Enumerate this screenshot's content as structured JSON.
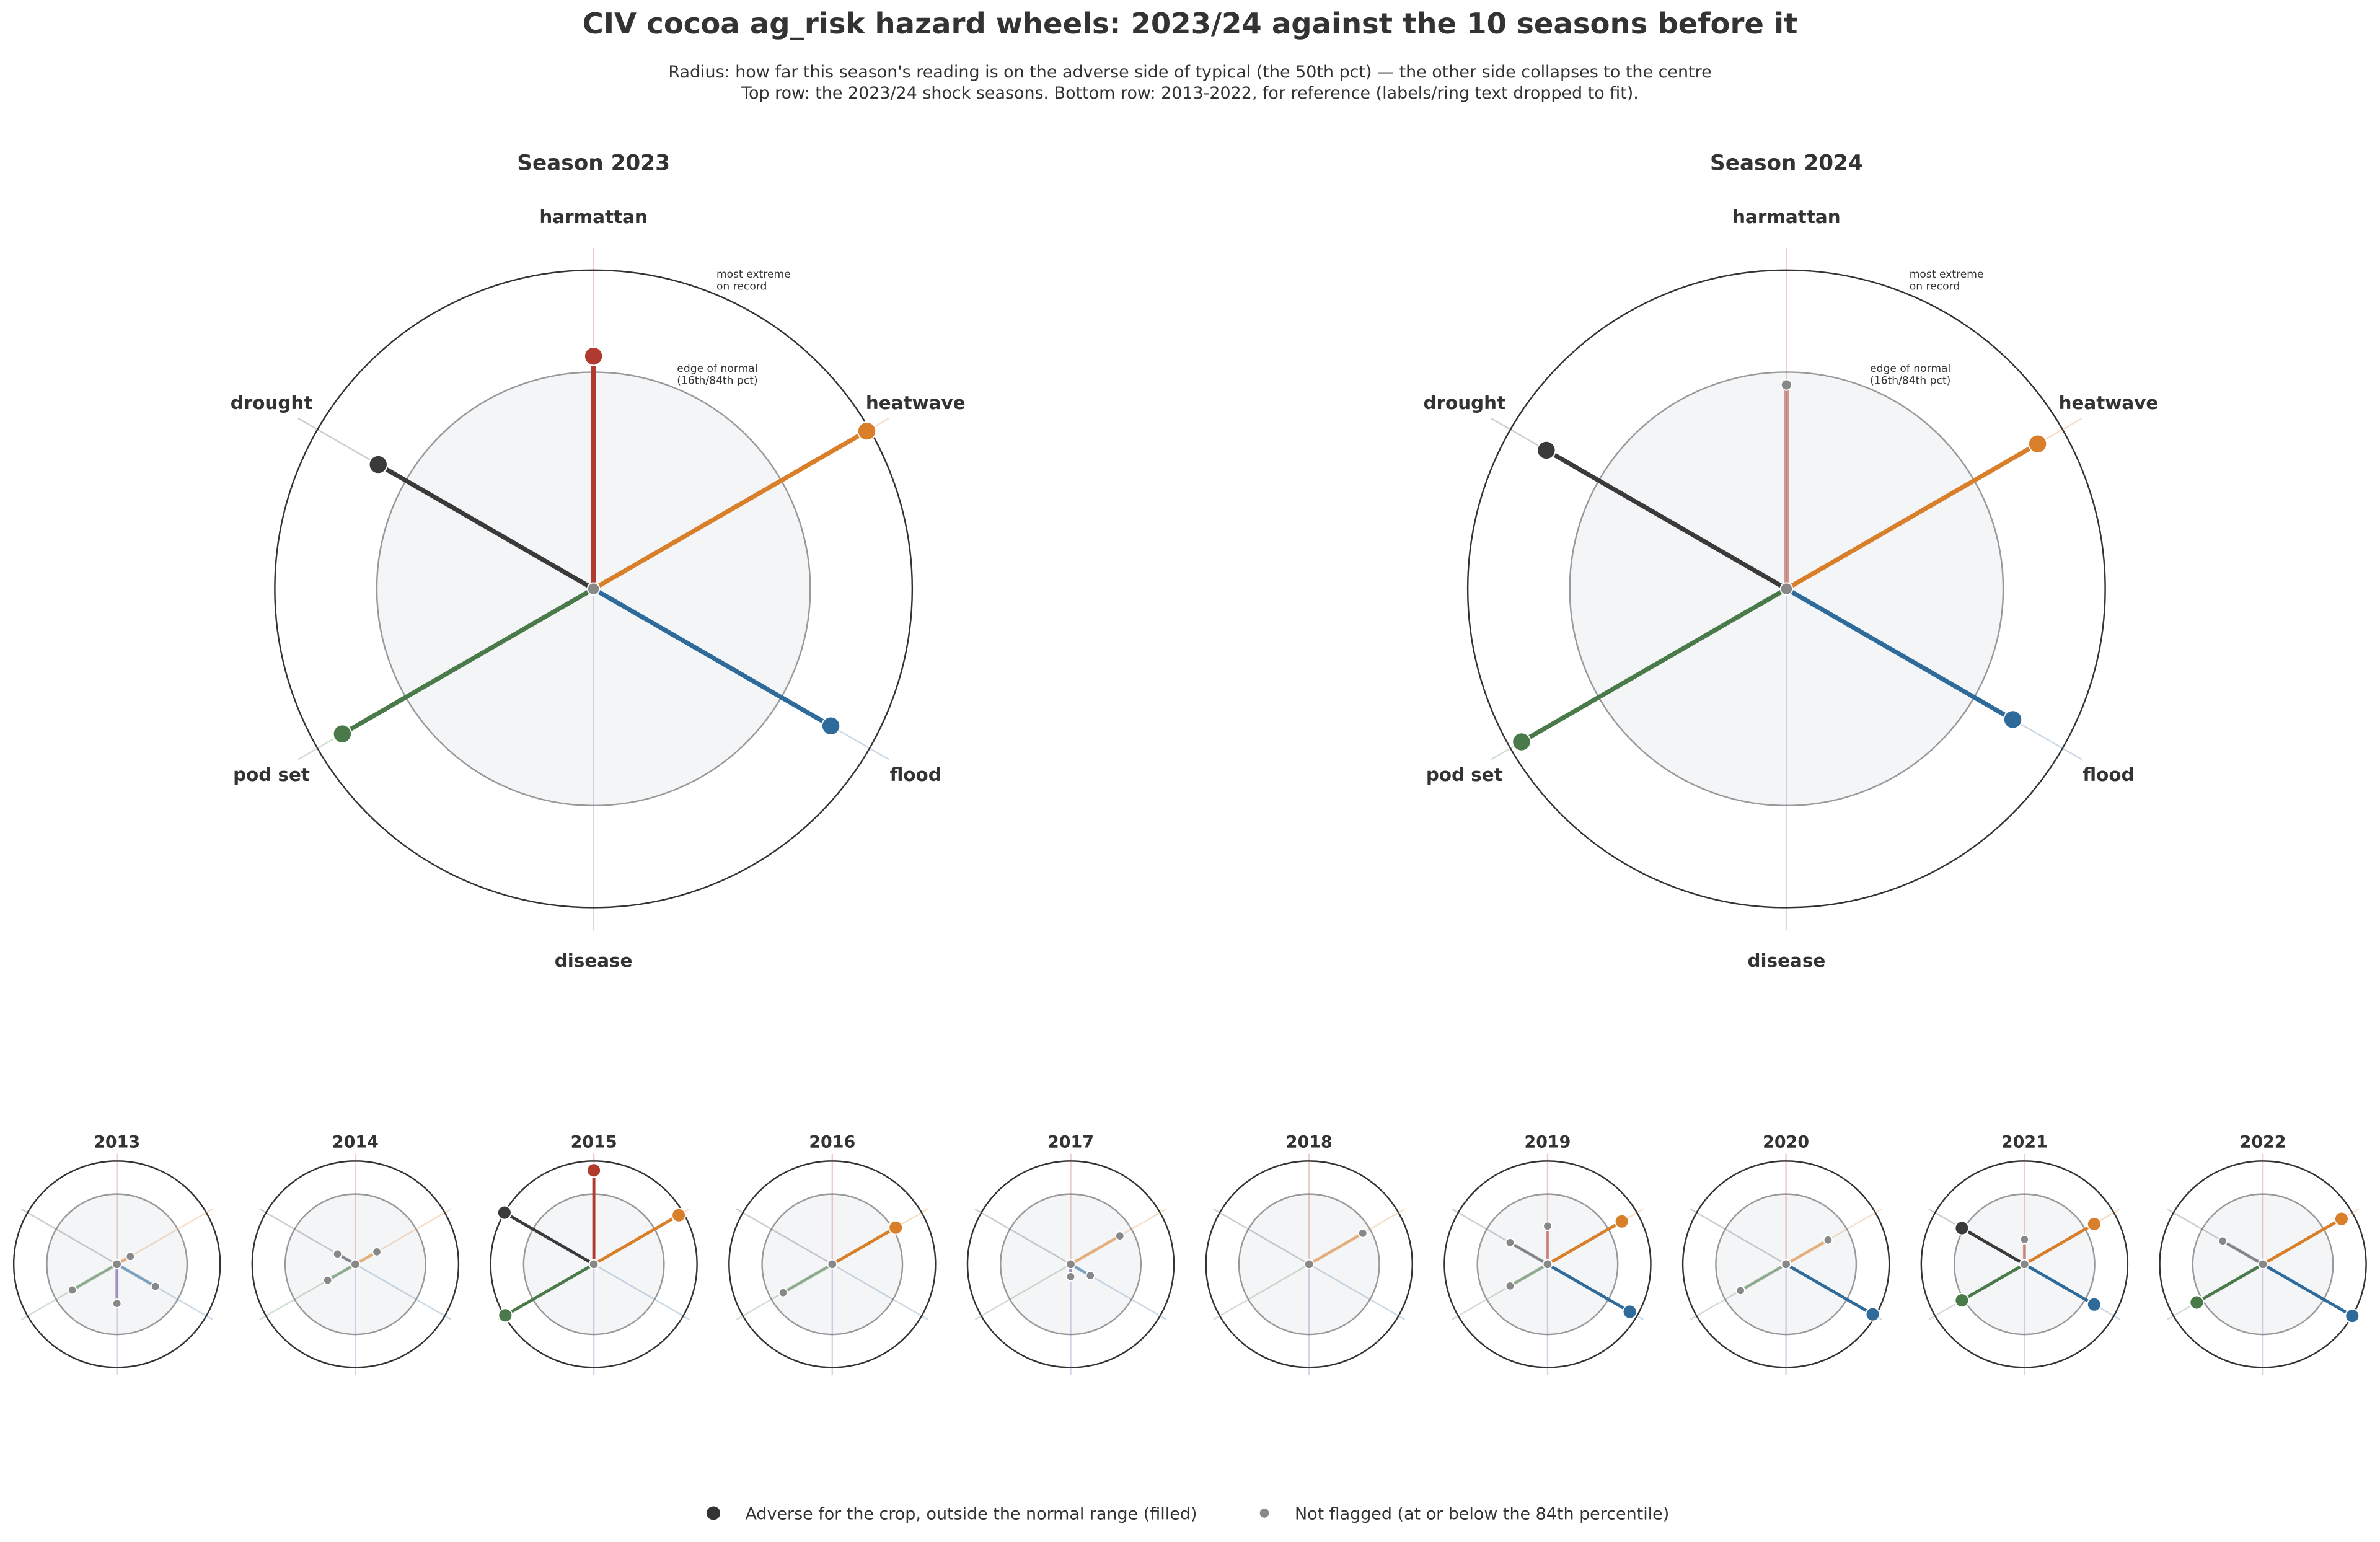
{
  "chart_data": {
    "type": "radar",
    "title": "CIV cocoa ag_risk hazard wheels: 2023/24 against the 10 seasons before it",
    "subtitle": [
      "Radius: how far this season's reading is on the adverse side of typical (the 50th pct) — the other side collapses to the centre",
      "Top row: the 2023/24 shock seasons. Bottom row: 2013-2022, for reference (labels/ring text dropped to fit)."
    ],
    "categories": [
      "harmattan",
      "heatwave",
      "flood",
      "disease",
      "pod set",
      "drought"
    ],
    "colors": [
      "#b03a2e",
      "#d97f2a",
      "#2e6a9a",
      "#6a4a9a",
      "#4a7a4a",
      "#3a3a3a"
    ],
    "ylim": [
      0,
      1
    ],
    "normal_ring": 0.68,
    "ring_labels": {
      "outer": [
        "most extreme",
        "on record"
      ],
      "inner": [
        "edge of normal",
        "(16th/84th pct)"
      ]
    },
    "panels": [
      {
        "title": "Season 2023",
        "values": [
          0.73,
          0.99,
          0.86,
          0,
          0.91,
          0.78
        ]
      },
      {
        "title": "Season 2024",
        "values": [
          0.64,
          0.91,
          0.82,
          0,
          0.96,
          0.87
        ]
      },
      {
        "title": "2013",
        "values": [
          0,
          0.15,
          0.43,
          0.38,
          0.5,
          0
        ]
      },
      {
        "title": "2014",
        "values": [
          0,
          0.24,
          0,
          0,
          0.31,
          0.2
        ]
      },
      {
        "title": "2015",
        "values": [
          0.91,
          0.95,
          0,
          0,
          0.99,
          1.0
        ]
      },
      {
        "title": "2016",
        "values": [
          0,
          0.71,
          0,
          0,
          0.55,
          0
        ]
      },
      {
        "title": "2017",
        "values": [
          0,
          0.55,
          0.22,
          0.12,
          0,
          0
        ]
      },
      {
        "title": "2018",
        "values": [
          0,
          0.6,
          0,
          0,
          0,
          0
        ]
      },
      {
        "title": "2019",
        "values": [
          0.37,
          0.83,
          0.92,
          0,
          0.42,
          0.42
        ]
      },
      {
        "title": "2020",
        "values": [
          0,
          0.47,
          0.97,
          0,
          0.51,
          0
        ]
      },
      {
        "title": "2021",
        "values": [
          0.24,
          0.78,
          0.78,
          0,
          0.7,
          0.7
        ]
      },
      {
        "title": "2022",
        "values": [
          0,
          0.88,
          1.0,
          0,
          0.74,
          0.45
        ]
      }
    ],
    "legend": [
      "Adverse for the crop, outside the normal range (filled)",
      "Not flagged (at or below the 84th percentile)"
    ]
  }
}
